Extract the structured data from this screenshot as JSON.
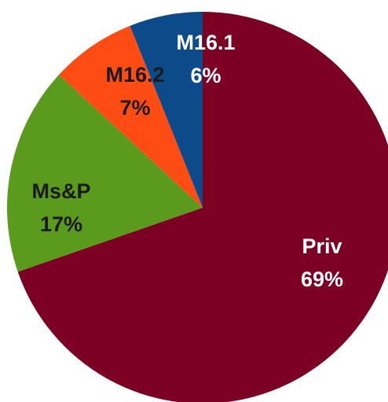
{
  "chart_data": {
    "type": "pie",
    "categories": [
      "Priv",
      "Ms&P",
      "M16.2",
      "M16.1"
    ],
    "values": [
      69,
      17,
      7,
      6
    ],
    "value_labels": [
      "69%",
      "17%",
      "7%",
      "6%"
    ],
    "colors": [
      "#7b0023",
      "#5a9a1c",
      "#ff4c12",
      "#0d4a8a"
    ],
    "label_colors": [
      "#ffffff",
      "#1a1a1a",
      "#1a1a1a",
      "#ffffff"
    ]
  }
}
